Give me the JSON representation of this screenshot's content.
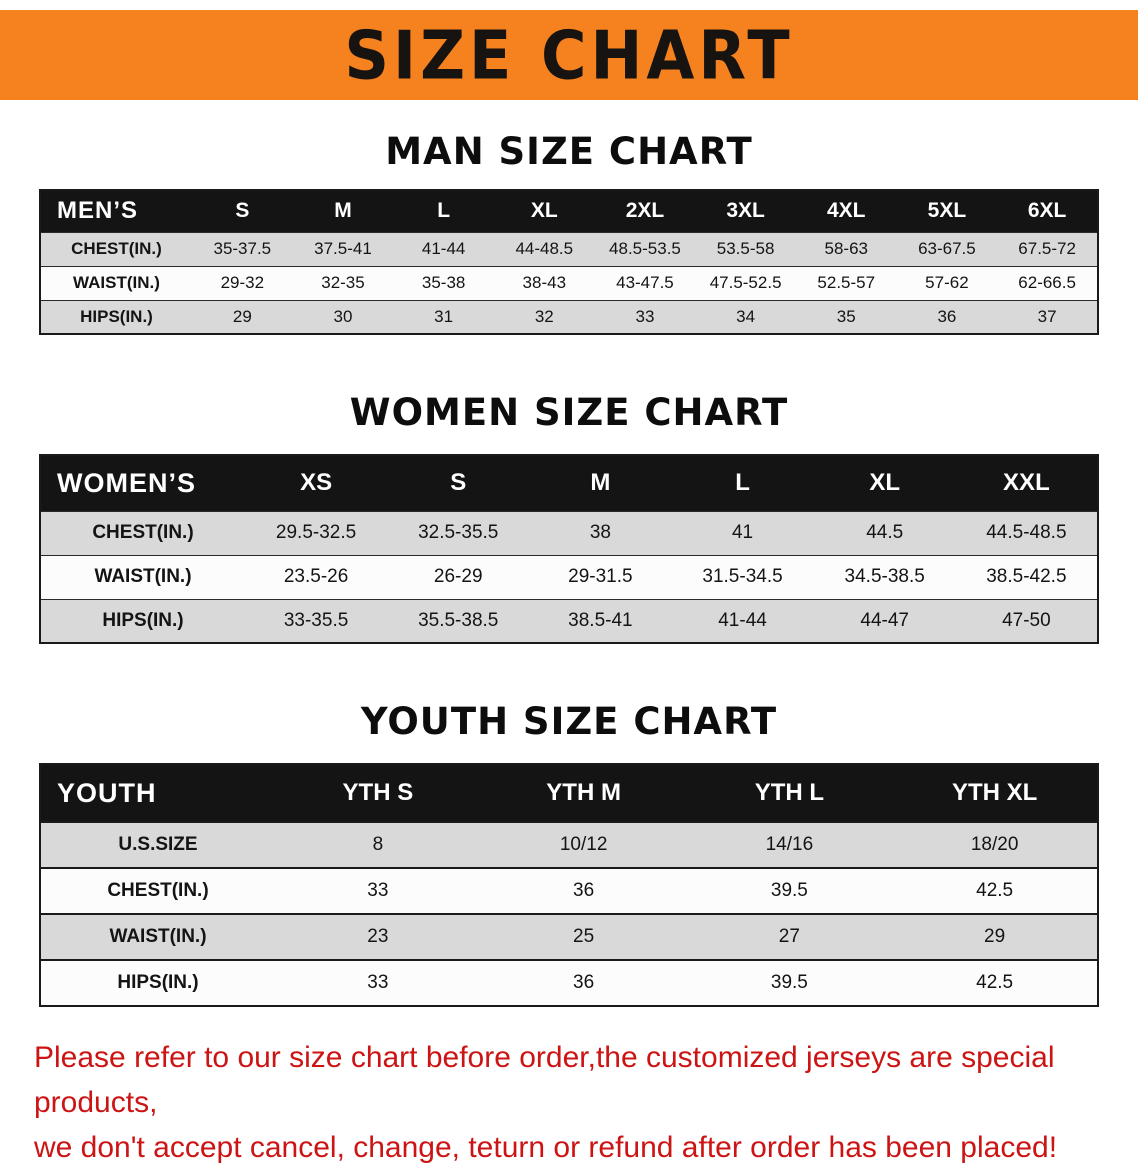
{
  "banner": {
    "title": "SIZE CHART"
  },
  "colors": {
    "banner_bg": "#f5821f",
    "header_band": "#141414",
    "stripe": "#d9d9d9",
    "notice_text": "#cc1414"
  },
  "chart_data": [
    {
      "type": "table",
      "id": "men",
      "title": "MAN SIZE CHART",
      "corner": "MEN’S",
      "columns": [
        "S",
        "M",
        "L",
        "XL",
        "2XL",
        "3XL",
        "4XL",
        "5XL",
        "6XL"
      ],
      "rows": [
        {
          "label": "CHEST(IN.)",
          "values": [
            "35-37.5",
            "37.5-41",
            "41-44",
            "44-48.5",
            "48.5-53.5",
            "53.5-58",
            "58-63",
            "63-67.5",
            "67.5-72"
          ]
        },
        {
          "label": "WAIST(IN.)",
          "values": [
            "29-32",
            "32-35",
            "35-38",
            "38-43",
            "43-47.5",
            "47.5-52.5",
            "52.5-57",
            "57-62",
            "62-66.5"
          ]
        },
        {
          "label": "HIPS(IN.)",
          "values": [
            "29",
            "30",
            "31",
            "32",
            "33",
            "34",
            "35",
            "36",
            "37"
          ]
        }
      ]
    },
    {
      "type": "table",
      "id": "women",
      "title": "WOMEN SIZE CHART",
      "corner": "WOMEN’S",
      "columns": [
        "XS",
        "S",
        "M",
        "L",
        "XL",
        "XXL"
      ],
      "rows": [
        {
          "label": "CHEST(IN.)",
          "values": [
            "29.5-32.5",
            "32.5-35.5",
            "38",
            "41",
            "44.5",
            "44.5-48.5"
          ]
        },
        {
          "label": "WAIST(IN.)",
          "values": [
            "23.5-26",
            "26-29",
            "29-31.5",
            "31.5-34.5",
            "34.5-38.5",
            "38.5-42.5"
          ]
        },
        {
          "label": "HIPS(IN.)",
          "values": [
            "33-35.5",
            "35.5-38.5",
            "38.5-41",
            "41-44",
            "44-47",
            "47-50"
          ]
        }
      ]
    },
    {
      "type": "table",
      "id": "youth",
      "title": "YOUTH SIZE CHART",
      "corner": "YOUTH",
      "columns": [
        "YTH S",
        "YTH M",
        "YTH L",
        "YTH XL"
      ],
      "rows": [
        {
          "label": "U.S.SIZE",
          "values": [
            "8",
            "10/12",
            "14/16",
            "18/20"
          ]
        },
        {
          "label": "CHEST(IN.)",
          "values": [
            "33",
            "36",
            "39.5",
            "42.5"
          ]
        },
        {
          "label": "WAIST(IN.)",
          "values": [
            "23",
            "25",
            "27",
            "29"
          ]
        },
        {
          "label": "HIPS(IN.)",
          "values": [
            "33",
            "36",
            "39.5",
            "42.5"
          ]
        }
      ]
    }
  ],
  "footer": {
    "line1": "Please refer to our size chart before order,the customized jerseys are special products,",
    "line2": "we don't accept cancel, change, teturn or refund after order has been placed!"
  }
}
